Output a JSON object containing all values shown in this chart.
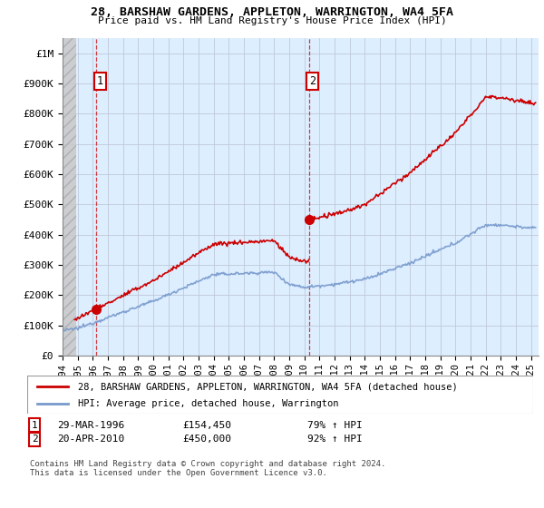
{
  "title1": "28, BARSHAW GARDENS, APPLETON, WARRINGTON, WA4 5FA",
  "title2": "Price paid vs. HM Land Registry's House Price Index (HPI)",
  "ylabel_ticks": [
    "£0",
    "£100K",
    "£200K",
    "£300K",
    "£400K",
    "£500K",
    "£600K",
    "£700K",
    "£800K",
    "£900K",
    "£1M"
  ],
  "ytick_values": [
    0,
    100000,
    200000,
    300000,
    400000,
    500000,
    600000,
    700000,
    800000,
    900000,
    1000000
  ],
  "ylim": [
    0,
    1050000
  ],
  "xlim_start": 1994.0,
  "xlim_end": 2025.5,
  "xticks": [
    1994,
    1995,
    1996,
    1997,
    1998,
    1999,
    2000,
    2001,
    2002,
    2003,
    2004,
    2005,
    2006,
    2007,
    2008,
    2009,
    2010,
    2011,
    2012,
    2013,
    2014,
    2015,
    2016,
    2017,
    2018,
    2019,
    2020,
    2021,
    2022,
    2023,
    2024,
    2025
  ],
  "sale1_x": 1996.23,
  "sale1_y": 154450,
  "sale2_x": 2010.3,
  "sale2_y": 450000,
  "red_color": "#cc0000",
  "blue_color": "#7799cc",
  "hpi_bg_color": "#ddeeff",
  "grid_color": "#c0c8d8",
  "legend_label1": "28, BARSHAW GARDENS, APPLETON, WARRINGTON, WA4 5FA (detached house)",
  "legend_label2": "HPI: Average price, detached house, Warrington",
  "sale1_date": "29-MAR-1996",
  "sale1_price": "£154,450",
  "sale1_hpi": "79% ↑ HPI",
  "sale2_date": "20-APR-2010",
  "sale2_price": "£450,000",
  "sale2_hpi": "92% ↑ HPI",
  "footnote": "Contains HM Land Registry data © Crown copyright and database right 2024.\nThis data is licensed under the Open Government Licence v3.0."
}
